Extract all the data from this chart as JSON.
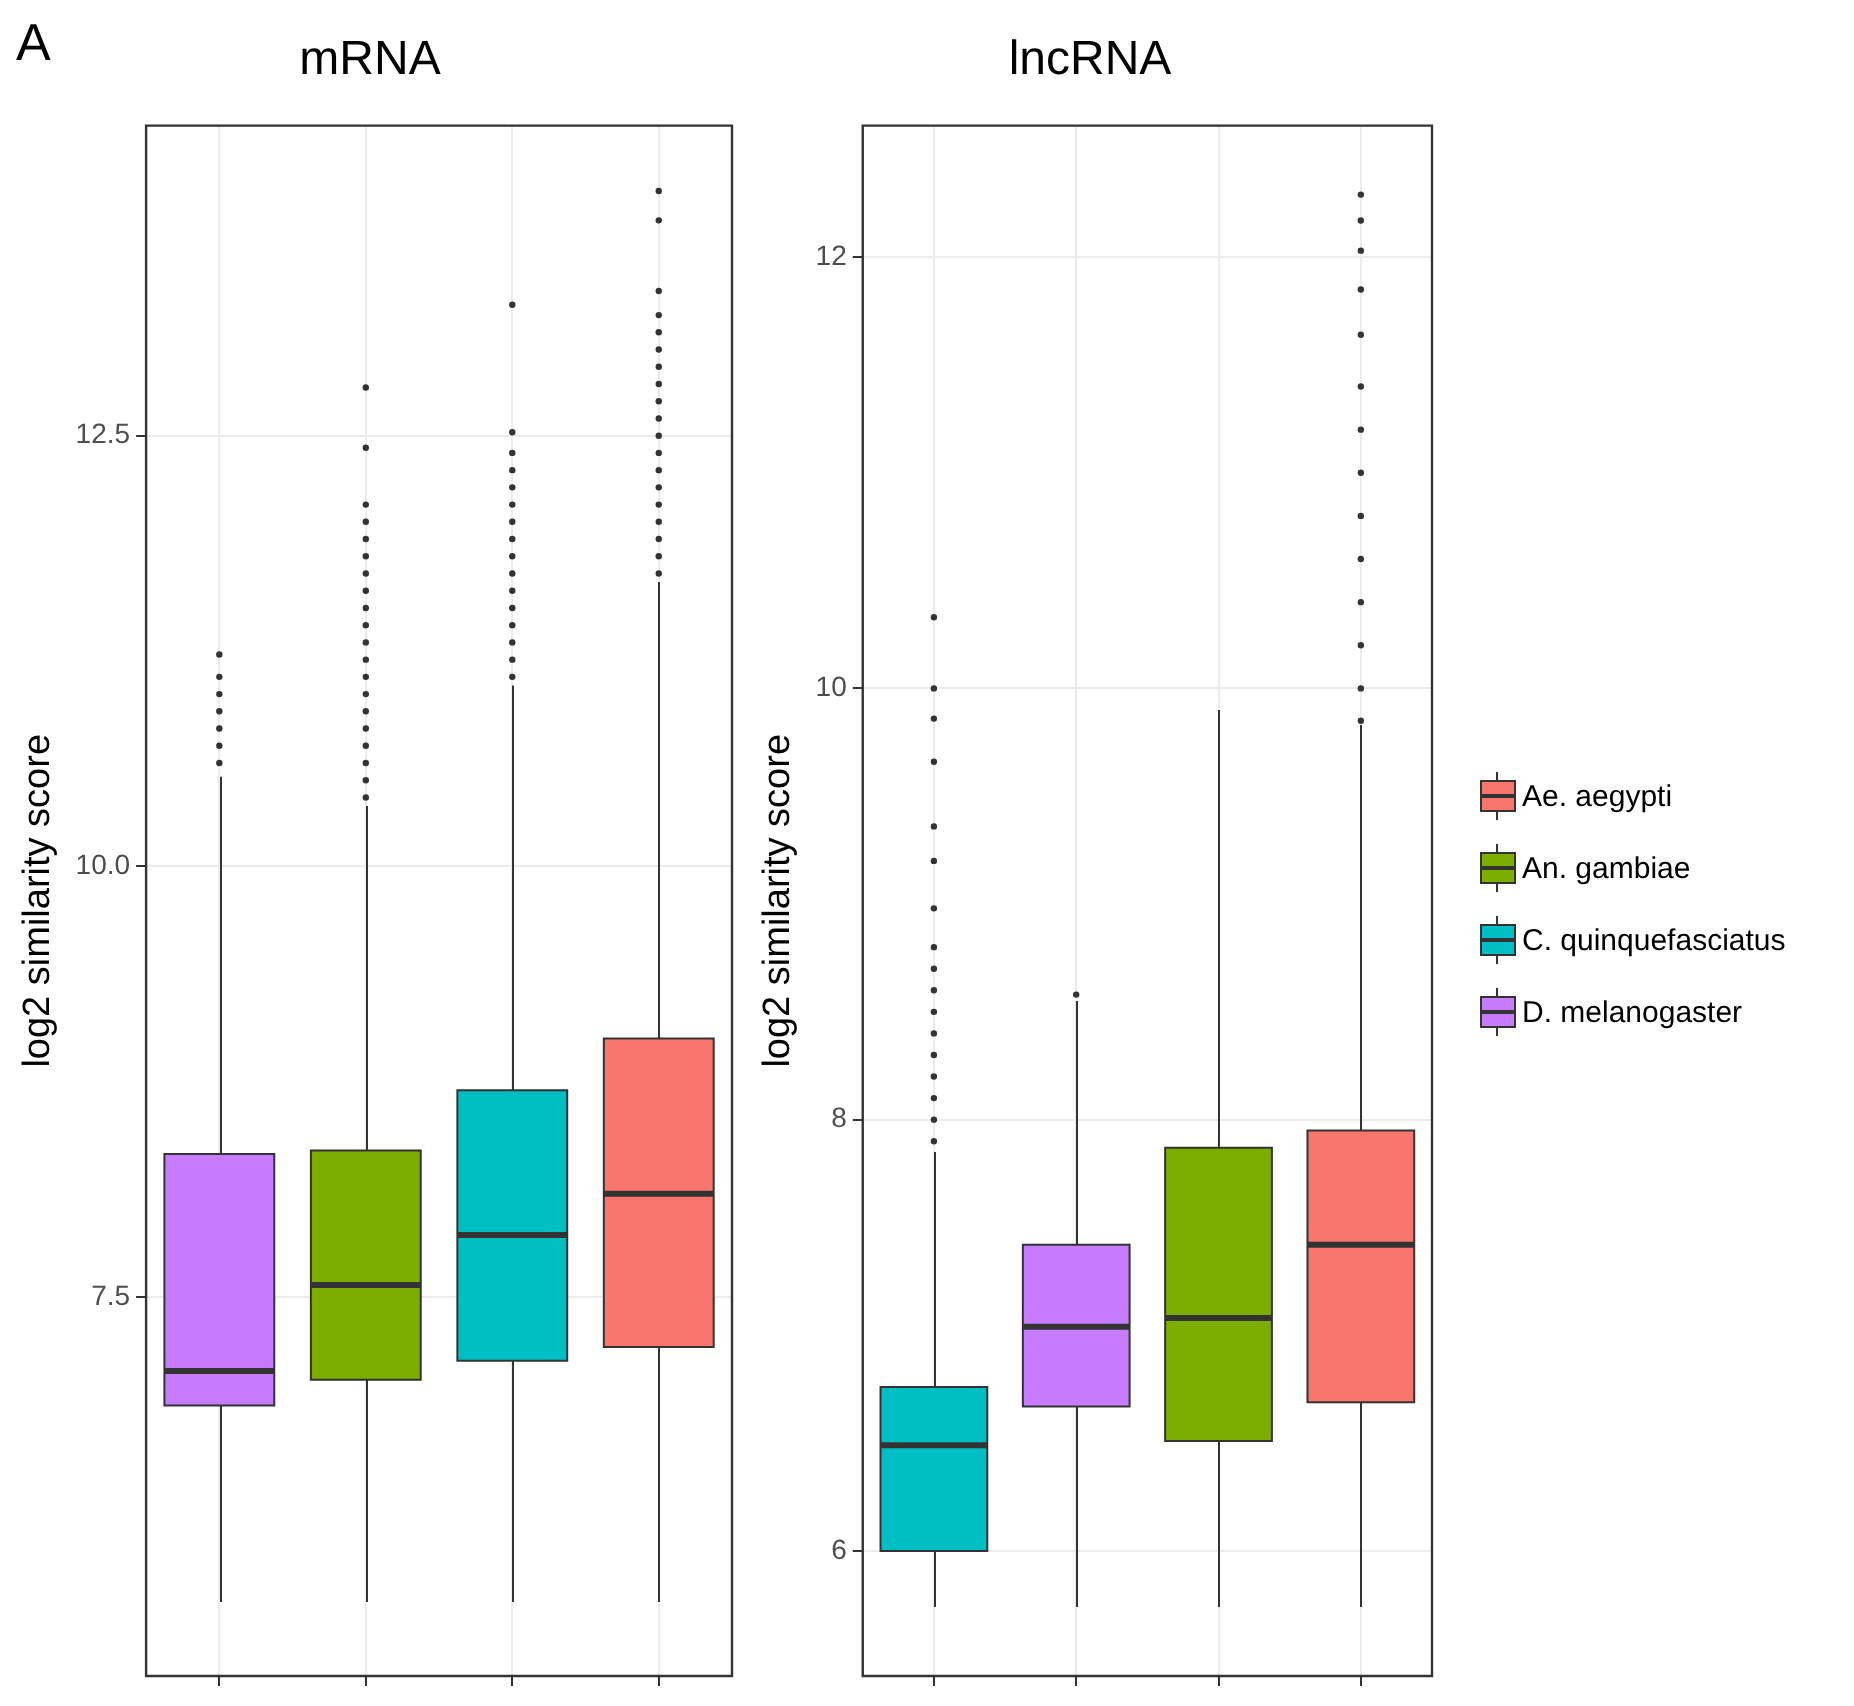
{
  "chart_data": [
    {
      "type": "box",
      "title": "mRNA",
      "ylabel": "log2 similarity score",
      "annotations": [
        "A"
      ],
      "categories": [
        null,
        null,
        null,
        null
      ],
      "ylim": [
        5.3,
        14.3
      ],
      "yticks": [
        7.5,
        {
          "value": 10,
          "label": "10.0"
        },
        12.5
      ],
      "grid": true,
      "tick_labels": "y",
      "legend": false,
      "series": [
        {
          "color": "#f8766d",
          "boxes": [
            null,
            null,
            null,
            {
              "low": 5.73,
              "q1": 7.21,
              "median": 8.1,
              "q3": 9.0,
              "high": 11.65,
              "outliers": [
                11.7,
                11.8,
                11.9,
                12.0,
                12.1,
                12.2,
                12.3,
                12.4,
                12.5,
                12.6,
                12.7,
                12.8,
                12.9,
                13.0,
                13.1,
                13.2,
                13.34,
                13.75,
                13.92
              ]
            }
          ]
        },
        {
          "color": "#7cae00",
          "boxes": [
            null,
            {
              "low": 5.73,
              "q1": 7.02,
              "median": 7.57,
              "q3": 8.35,
              "high": 10.35,
              "outliers": [
                10.4,
                10.5,
                10.6,
                10.7,
                10.8,
                10.9,
                11.0,
                11.1,
                11.2,
                11.3,
                11.4,
                11.5,
                11.6,
                11.7,
                11.8,
                11.9,
                12.0,
                12.1,
                12.43,
                12.78
              ]
            },
            null,
            null
          ]
        },
        {
          "color": "#00bfc4",
          "boxes": [
            null,
            null,
            {
              "low": 5.73,
              "q1": 7.13,
              "median": 7.86,
              "q3": 8.7,
              "high": 11.05,
              "outliers": [
                11.1,
                11.2,
                11.3,
                11.4,
                11.5,
                11.6,
                11.7,
                11.8,
                11.9,
                12.0,
                12.1,
                12.2,
                12.3,
                12.4,
                12.52,
                13.26
              ]
            },
            null
          ]
        },
        {
          "color": "#c77cff",
          "boxes": [
            {
              "low": 5.73,
              "q1": 6.87,
              "median": 7.07,
              "q3": 8.33,
              "high": 10.52,
              "outliers": [
                10.6,
                10.7,
                10.8,
                10.9,
                11.0,
                11.1,
                11.23
              ]
            },
            null,
            null,
            null
          ]
        }
      ]
    },
    {
      "type": "box",
      "title": "lncRNA",
      "ylabel": "log2 similarity score",
      "categories": [
        null,
        null,
        null,
        null
      ],
      "ylim": [
        5.42,
        12.61
      ],
      "yticks": [
        6,
        8,
        10,
        12
      ],
      "grid": true,
      "tick_labels": "y",
      "legend": "right",
      "series": [
        {
          "name": "Ae. aegypti",
          "color": "#f8766d",
          "boxes": [
            null,
            null,
            null,
            {
              "low": 5.74,
              "q1": 6.69,
              "median": 7.42,
              "q3": 7.95,
              "high": 9.83,
              "outliers": [
                9.85,
                10.0,
                10.2,
                10.4,
                10.6,
                10.8,
                11.0,
                11.2,
                11.4,
                11.64,
                11.85,
                12.03,
                12.17,
                12.29
              ]
            }
          ]
        },
        {
          "name": "An. gambiae",
          "color": "#7cae00",
          "boxes": [
            null,
            null,
            {
              "low": 5.74,
              "q1": 6.51,
              "median": 7.08,
              "q3": 7.87,
              "high": 9.9
            },
            null
          ]
        },
        {
          "name": "C. quinquefasciatus",
          "color": "#00bfc4",
          "boxes": [
            {
              "low": 5.74,
              "q1": 6.0,
              "median": 6.49,
              "q3": 6.76,
              "high": 7.85,
              "outliers": [
                7.9,
                8.0,
                8.1,
                8.2,
                8.3,
                8.4,
                8.5,
                8.6,
                8.7,
                8.8,
                8.98,
                9.2,
                9.36,
                9.66,
                9.86,
                10.0,
                10.33
              ]
            },
            null,
            null,
            null
          ]
        },
        {
          "name": "D. melanogaster",
          "color": "#c77cff",
          "boxes": [
            null,
            {
              "low": 5.74,
              "q1": 6.67,
              "median": 7.04,
              "q3": 7.42,
              "high": 8.55,
              "outliers": [
                8.58
              ]
            },
            null,
            null
          ]
        }
      ]
    }
  ]
}
